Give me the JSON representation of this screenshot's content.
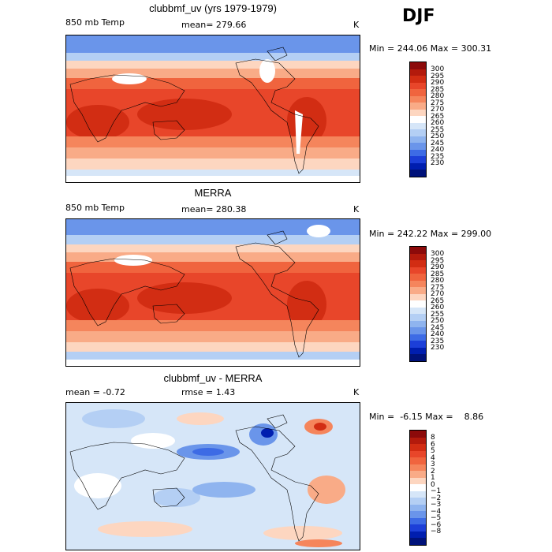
{
  "season": "DJF",
  "panels": [
    {
      "title": "clubbmf_uv (yrs 1979-1979)",
      "variable": "850 mb Temp",
      "mean_text": "mean= 279.66",
      "units": "K",
      "stats": "Min = 244.06 Max = 300.31",
      "colorbar_labels": [
        "300",
        "295",
        "290",
        "285",
        "280",
        "275",
        "270",
        "265",
        "260",
        "255",
        "250",
        "245",
        "240",
        "235",
        "230"
      ],
      "colorbar_colors": [
        "#8c0a0a",
        "#b31a0c",
        "#d22d13",
        "#e8462a",
        "#f0643e",
        "#f5855c",
        "#f9ab87",
        "#fdd6c0",
        "#ffffff",
        "#d6e6f8",
        "#b4cff4",
        "#8fb4ef",
        "#6a95ea",
        "#3d6be5",
        "#1c3fd8",
        "#001eaf",
        "#00127a"
      ]
    },
    {
      "title": "MERRA",
      "variable": "850 mb Temp",
      "mean_text": "mean= 280.38",
      "units": "K",
      "stats": "Min = 242.22 Max = 299.00",
      "colorbar_labels": [
        "300",
        "295",
        "290",
        "285",
        "280",
        "275",
        "270",
        "265",
        "260",
        "255",
        "250",
        "245",
        "240",
        "235",
        "230"
      ],
      "colorbar_colors": [
        "#8c0a0a",
        "#b31a0c",
        "#d22d13",
        "#e8462a",
        "#f0643e",
        "#f5855c",
        "#f9ab87",
        "#fdd6c0",
        "#ffffff",
        "#d6e6f8",
        "#b4cff4",
        "#8fb4ef",
        "#6a95ea",
        "#3d6be5",
        "#1c3fd8",
        "#001eaf",
        "#00127a"
      ]
    },
    {
      "title": "clubbmf_uv - MERRA",
      "mean_text": "mean =   -0.72",
      "rmse_text": "rmse =    1.43",
      "units": "K",
      "stats": "Min =  -6.15 Max =    8.86",
      "colorbar_labels": [
        "8",
        "6",
        "5",
        "4",
        "3",
        "2",
        "1",
        "0",
        "−1",
        "−2",
        "−3",
        "−4",
        "−5",
        "−6",
        "−8"
      ],
      "colorbar_colors": [
        "#8c0a0a",
        "#b31a0c",
        "#d22d13",
        "#e8462a",
        "#f0643e",
        "#f5855c",
        "#f9ab87",
        "#fdd6c0",
        "#ffffff",
        "#d6e6f8",
        "#b4cff4",
        "#8fb4ef",
        "#6a95ea",
        "#3d6be5",
        "#1c3fd8",
        "#001eaf",
        "#00127a"
      ]
    }
  ]
}
